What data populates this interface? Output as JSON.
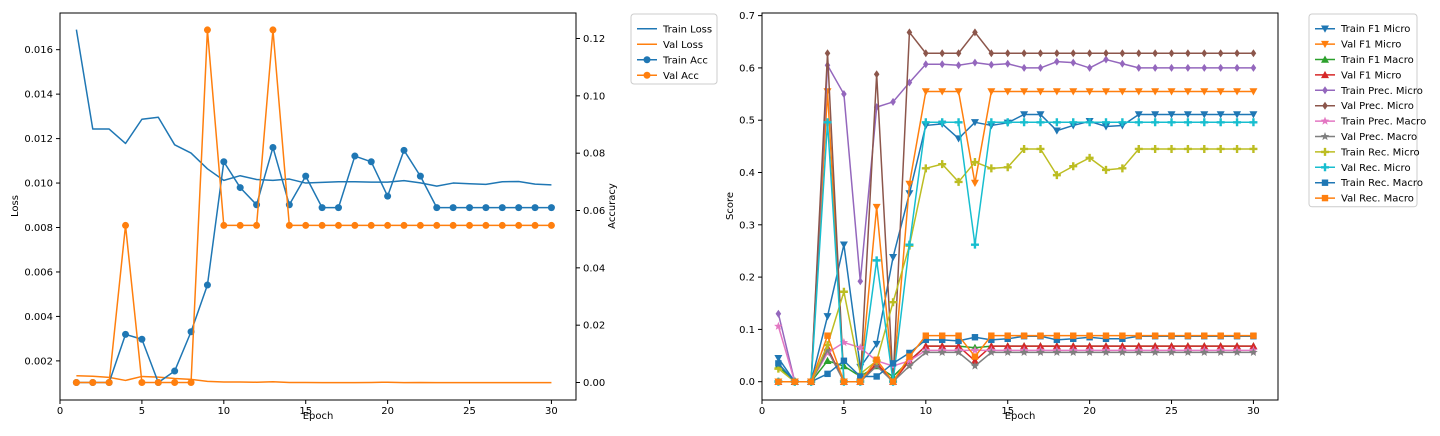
{
  "chart_data": [
    {
      "type": "line",
      "xlabel": "Epoch",
      "ylabel": "Loss",
      "y2label": "Accuracy",
      "xlim": [
        0,
        31.5
      ],
      "ylim": [
        0.00024,
        0.01765
      ],
      "y2lim": [
        -0.0061,
        0.1289
      ],
      "xticks": [
        0,
        5,
        10,
        15,
        20,
        25,
        30
      ],
      "yticks": [
        0.002,
        0.004,
        0.006,
        0.008,
        0.01,
        0.012,
        0.014,
        0.016
      ],
      "y2ticks": [
        0.0,
        0.02,
        0.04,
        0.06,
        0.08,
        0.1,
        0.12
      ],
      "legend_position": "outside-right",
      "x": [
        1,
        2,
        3,
        4,
        5,
        6,
        7,
        8,
        9,
        10,
        11,
        12,
        13,
        14,
        15,
        16,
        17,
        18,
        19,
        20,
        21,
        22,
        23,
        24,
        25,
        26,
        27,
        28,
        29,
        30
      ],
      "series": [
        {
          "name": "Train Loss",
          "axis": "left",
          "color": "#1f77b4",
          "marker": "none",
          "values": [
            0.0169,
            0.01243,
            0.01243,
            0.01178,
            0.01287,
            0.01296,
            0.01172,
            0.01135,
            0.01064,
            0.01012,
            0.01033,
            0.01016,
            0.01012,
            0.01018,
            0.01,
            0.01003,
            0.01006,
            0.01006,
            0.01004,
            0.01004,
            0.01011,
            0.01001,
            0.00986,
            0.01,
            0.00997,
            0.00994,
            0.01006,
            0.01007,
            0.00995,
            0.00992
          ]
        },
        {
          "name": "Val Loss",
          "axis": "left",
          "color": "#ff7f0e",
          "marker": "none",
          "values": [
            0.00133,
            0.00131,
            0.00126,
            0.00112,
            0.0013,
            0.00127,
            0.00121,
            0.00117,
            0.00108,
            0.00105,
            0.00105,
            0.00104,
            0.00106,
            0.00103,
            0.00103,
            0.00102,
            0.00102,
            0.00102,
            0.00103,
            0.00104,
            0.00102,
            0.00103,
            0.00102,
            0.00102,
            0.00102,
            0.00102,
            0.00102,
            0.00102,
            0.00102,
            0.00102
          ]
        },
        {
          "name": "Train Acc",
          "axis": "right",
          "color": "#1f77b4",
          "marker": "circle",
          "values": [
            0,
            0,
            0,
            0.0168,
            0.0151,
            0,
            0.004,
            0.0177,
            0.034,
            0.077,
            0.068,
            0.062,
            0.082,
            0.062,
            0.072,
            0.061,
            0.061,
            0.079,
            0.077,
            0.065,
            0.081,
            0.072,
            0.061,
            0.061,
            0.061,
            0.061,
            0.061,
            0.061,
            0.061,
            0.061
          ]
        },
        {
          "name": "Val Acc",
          "axis": "right",
          "color": "#ff7f0e",
          "marker": "circle",
          "values": [
            0,
            0,
            0,
            0.0548,
            0,
            0,
            0,
            0,
            0.123,
            0.0548,
            0.0548,
            0.0548,
            0.123,
            0.0548,
            0.0548,
            0.0548,
            0.0548,
            0.0548,
            0.0548,
            0.0548,
            0.0548,
            0.0548,
            0.0548,
            0.0548,
            0.0548,
            0.0548,
            0.0548,
            0.0548,
            0.0548,
            0.0548
          ]
        }
      ]
    },
    {
      "type": "line",
      "xlabel": "Epoch",
      "ylabel": "Score",
      "xlim": [
        0,
        31.5
      ],
      "ylim": [
        -0.035,
        0.705
      ],
      "xticks": [
        0,
        5,
        10,
        15,
        20,
        25,
        30
      ],
      "yticks": [
        0.0,
        0.1,
        0.2,
        0.3,
        0.4,
        0.5,
        0.6,
        0.7
      ],
      "legend_position": "outside-right",
      "x": [
        1,
        2,
        3,
        4,
        5,
        6,
        7,
        8,
        9,
        10,
        11,
        12,
        13,
        14,
        15,
        16,
        17,
        18,
        19,
        20,
        21,
        22,
        23,
        24,
        25,
        26,
        27,
        28,
        29,
        30
      ],
      "series": [
        {
          "name": "Train F1 Micro",
          "color": "#1f77b4",
          "marker": "tri-down",
          "values": [
            0.045,
            0,
            0,
            0.125,
            0.262,
            0.028,
            0.072,
            0.238,
            0.36,
            0.49,
            0.493,
            0.465,
            0.496,
            0.49,
            0.495,
            0.511,
            0.511,
            0.48,
            0.49,
            0.498,
            0.488,
            0.49,
            0.511,
            0.511,
            0.511,
            0.511,
            0.511,
            0.511,
            0.511,
            0.511
          ]
        },
        {
          "name": "Val F1 Micro",
          "color": "#ff7f0e",
          "marker": "tri-down",
          "values": [
            0,
            0,
            0,
            0.555,
            0,
            0,
            0.334,
            0,
            0.378,
            0.555,
            0.555,
            0.555,
            0.38,
            0.555,
            0.555,
            0.555,
            0.555,
            0.555,
            0.555,
            0.555,
            0.555,
            0.555,
            0.555,
            0.555,
            0.555,
            0.555,
            0.555,
            0.555,
            0.555,
            0.555
          ]
        },
        {
          "name": "Train F1 Macro",
          "color": "#2ca02c",
          "marker": "tri-up",
          "values": [
            0.03,
            0,
            0,
            0.04,
            0.03,
            0.01,
            0.03,
            0.01,
            0.04,
            0.068,
            0.068,
            0.068,
            0.065,
            0.068,
            0.068,
            0.068,
            0.068,
            0.068,
            0.068,
            0.068,
            0.068,
            0.068,
            0.068,
            0.068,
            0.068,
            0.068,
            0.068,
            0.068,
            0.068,
            0.068
          ]
        },
        {
          "name": "Val F1 Micro",
          "color": "#d62728",
          "marker": "tri-up",
          "values": [
            0,
            0,
            0,
            0.065,
            0,
            0,
            0.035,
            0,
            0.04,
            0.068,
            0.068,
            0.068,
            0.04,
            0.068,
            0.068,
            0.068,
            0.068,
            0.068,
            0.068,
            0.068,
            0.068,
            0.068,
            0.068,
            0.068,
            0.068,
            0.068,
            0.068,
            0.068,
            0.068,
            0.068
          ]
        },
        {
          "name": "Train Prec. Micro",
          "color": "#9467bd",
          "marker": "diamond",
          "values": [
            0.13,
            0,
            0,
            0.605,
            0.55,
            0.192,
            0.525,
            0.535,
            0.572,
            0.607,
            0.607,
            0.605,
            0.61,
            0.606,
            0.608,
            0.6,
            0.6,
            0.612,
            0.61,
            0.6,
            0.616,
            0.608,
            0.6,
            0.6,
            0.6,
            0.6,
            0.6,
            0.6,
            0.6,
            0.6
          ]
        },
        {
          "name": "Val Prec. Micro",
          "color": "#8c564b",
          "marker": "diamond",
          "values": [
            0,
            0,
            0,
            0.628,
            0,
            0,
            0.588,
            0,
            0.668,
            0.628,
            0.628,
            0.628,
            0.668,
            0.628,
            0.628,
            0.628,
            0.628,
            0.628,
            0.628,
            0.628,
            0.628,
            0.628,
            0.628,
            0.628,
            0.628,
            0.628,
            0.628,
            0.628,
            0.628,
            0.628
          ]
        },
        {
          "name": "Train Prec. Macro",
          "color": "#e377c2",
          "marker": "star",
          "values": [
            0.106,
            0,
            0,
            0.055,
            0.075,
            0.065,
            0.04,
            0.03,
            0.04,
            0.06,
            0.06,
            0.06,
            0.06,
            0.06,
            0.06,
            0.06,
            0.06,
            0.06,
            0.06,
            0.06,
            0.06,
            0.06,
            0.06,
            0.06,
            0.06,
            0.06,
            0.06,
            0.06,
            0.06,
            0.06
          ]
        },
        {
          "name": "Val Prec. Macro",
          "color": "#7f7f7f",
          "marker": "star",
          "values": [
            0,
            0,
            0,
            0.06,
            0,
            0,
            0.03,
            0,
            0.03,
            0.056,
            0.056,
            0.056,
            0.03,
            0.056,
            0.056,
            0.056,
            0.056,
            0.056,
            0.056,
            0.056,
            0.056,
            0.056,
            0.056,
            0.056,
            0.056,
            0.056,
            0.056,
            0.056,
            0.056,
            0.056
          ]
        },
        {
          "name": "Train Rec. Micro",
          "color": "#bcbd22",
          "marker": "plus",
          "values": [
            0.025,
            0,
            0,
            0.07,
            0.172,
            0.015,
            0.04,
            0.152,
            0.26,
            0.408,
            0.416,
            0.382,
            0.42,
            0.408,
            0.41,
            0.445,
            0.445,
            0.395,
            0.412,
            0.428,
            0.405,
            0.408,
            0.445,
            0.445,
            0.445,
            0.445,
            0.445,
            0.445,
            0.445,
            0.445
          ]
        },
        {
          "name": "Val Rec. Micro",
          "color": "#17becf",
          "marker": "plus",
          "values": [
            0,
            0,
            0,
            0.496,
            0,
            0,
            0.232,
            0,
            0.262,
            0.496,
            0.496,
            0.496,
            0.262,
            0.496,
            0.496,
            0.496,
            0.496,
            0.496,
            0.496,
            0.496,
            0.496,
            0.496,
            0.496,
            0.496,
            0.496,
            0.496,
            0.496,
            0.496,
            0.496,
            0.496
          ]
        },
        {
          "name": "Train Rec. Macro",
          "color": "#1f77b4",
          "marker": "square",
          "values": [
            0.035,
            0,
            0,
            0.015,
            0.04,
            0.01,
            0.01,
            0.035,
            0.055,
            0.08,
            0.08,
            0.078,
            0.085,
            0.08,
            0.082,
            0.087,
            0.087,
            0.08,
            0.082,
            0.085,
            0.082,
            0.082,
            0.087,
            0.087,
            0.087,
            0.087,
            0.087,
            0.087,
            0.087,
            0.087
          ]
        },
        {
          "name": "Val Rec. Macro",
          "color": "#ff7f0e",
          "marker": "square",
          "values": [
            0,
            0,
            0,
            0.088,
            0,
            0,
            0.042,
            0,
            0.048,
            0.088,
            0.088,
            0.088,
            0.048,
            0.088,
            0.088,
            0.088,
            0.088,
            0.088,
            0.088,
            0.088,
            0.088,
            0.088,
            0.088,
            0.088,
            0.088,
            0.088,
            0.088,
            0.088,
            0.088,
            0.088
          ]
        }
      ]
    }
  ]
}
